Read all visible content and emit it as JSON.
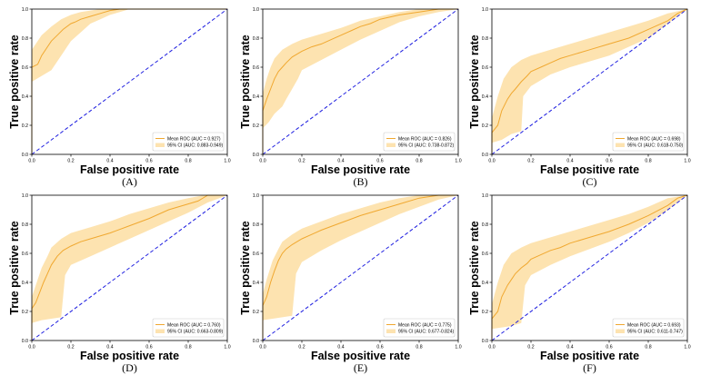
{
  "chart_data": [
    {
      "type": "line",
      "panel_label": "(A)",
      "xlabel": "False positive rate",
      "ylabel": "True positive rate",
      "xlim": [
        0.0,
        1.0
      ],
      "ylim": [
        0.0,
        1.0
      ],
      "xticks": [
        "0.0",
        "0.2",
        "0.4",
        "0.6",
        "0.8",
        "1.0"
      ],
      "yticks": [
        "0.0",
        "0.2",
        "0.4",
        "0.6",
        "0.8",
        "1.0"
      ],
      "legend_position": "lower-right",
      "legend": [
        "Mean ROC (AUC = 0.927)",
        "95% CI (AUC: 0.883-0.949)"
      ],
      "colors": {
        "mean": "#f0a830",
        "ci": "#fde3b0",
        "chance": "#1f1fe0"
      },
      "series": [
        {
          "name": "Mean ROC",
          "x": [
            0,
            0.0,
            0.03,
            0.05,
            0.08,
            0.1,
            0.13,
            0.16,
            0.2,
            0.22,
            0.25,
            0.3,
            0.35,
            0.4,
            0.45,
            0.5,
            1.0
          ],
          "y": [
            0,
            0.6,
            0.62,
            0.68,
            0.74,
            0.78,
            0.82,
            0.86,
            0.9,
            0.91,
            0.93,
            0.95,
            0.97,
            0.99,
            1.0,
            1.0,
            1.0
          ]
        },
        {
          "name": "95% CI upper",
          "x": [
            0,
            0.0,
            0.05,
            0.1,
            0.15,
            0.2,
            0.25,
            0.3,
            0.35,
            0.4,
            1.0
          ],
          "y": [
            0,
            0.72,
            0.82,
            0.88,
            0.93,
            0.96,
            0.98,
            0.99,
            1.0,
            1.0,
            1.0
          ]
        },
        {
          "name": "95% CI lower",
          "x": [
            0,
            0.0,
            0.05,
            0.1,
            0.15,
            0.2,
            0.25,
            0.3,
            0.35,
            0.4,
            0.45,
            0.5,
            1.0
          ],
          "y": [
            0,
            0.5,
            0.54,
            0.58,
            0.68,
            0.78,
            0.84,
            0.9,
            0.93,
            0.96,
            0.98,
            1.0,
            1.0
          ]
        },
        {
          "name": "Chance",
          "x": [
            0,
            1
          ],
          "y": [
            0,
            1
          ]
        }
      ]
    },
    {
      "type": "line",
      "panel_label": "(B)",
      "xlabel": "False positive rate",
      "ylabel": "True positive rate",
      "xlim": [
        0.0,
        1.0
      ],
      "ylim": [
        0.0,
        1.0
      ],
      "xticks": [
        "0.0",
        "0.2",
        "0.4",
        "0.6",
        "0.8",
        "1.0"
      ],
      "yticks": [
        "0.0",
        "0.2",
        "0.4",
        "0.6",
        "0.8",
        "1.0"
      ],
      "legend_position": "lower-right",
      "legend": [
        "Mean ROC (AUC = 0.826)",
        "95% CI (AUC: 0.738-0.872)"
      ],
      "colors": {
        "mean": "#f0a830",
        "ci": "#fde3b0",
        "chance": "#1f1fe0"
      },
      "series": [
        {
          "name": "Mean ROC",
          "x": [
            0,
            0.0,
            0.02,
            0.04,
            0.06,
            0.08,
            0.1,
            0.12,
            0.15,
            0.2,
            0.25,
            0.3,
            0.35,
            0.4,
            0.45,
            0.5,
            0.55,
            0.6,
            0.7,
            0.8,
            0.9,
            1.0
          ],
          "y": [
            0,
            0.3,
            0.38,
            0.45,
            0.52,
            0.57,
            0.6,
            0.63,
            0.67,
            0.71,
            0.74,
            0.76,
            0.79,
            0.82,
            0.85,
            0.88,
            0.9,
            0.93,
            0.96,
            0.98,
            1.0,
            1.0
          ]
        },
        {
          "name": "95% CI upper",
          "x": [
            0,
            0.0,
            0.02,
            0.04,
            0.06,
            0.1,
            0.15,
            0.2,
            0.3,
            0.4,
            0.5,
            0.6,
            0.7,
            0.8,
            1.0
          ],
          "y": [
            0,
            0.42,
            0.52,
            0.6,
            0.66,
            0.72,
            0.76,
            0.79,
            0.83,
            0.87,
            0.92,
            0.95,
            0.98,
            1.0,
            1.0
          ]
        },
        {
          "name": "95% CI lower",
          "x": [
            0,
            0.0,
            0.03,
            0.06,
            0.1,
            0.12,
            0.15,
            0.18,
            0.2,
            0.3,
            0.4,
            0.5,
            0.6,
            0.7,
            0.8,
            0.9,
            1.0
          ],
          "y": [
            0,
            0.18,
            0.22,
            0.28,
            0.33,
            0.38,
            0.45,
            0.52,
            0.58,
            0.65,
            0.72,
            0.79,
            0.85,
            0.91,
            0.95,
            0.98,
            1.0
          ]
        },
        {
          "name": "Chance",
          "x": [
            0,
            1
          ],
          "y": [
            0,
            1
          ]
        }
      ]
    },
    {
      "type": "line",
      "panel_label": "(C)",
      "xlabel": "False positive rate",
      "ylabel": "True positive rate",
      "xlim": [
        0.0,
        1.0
      ],
      "ylim": [
        0.0,
        1.0
      ],
      "xticks": [
        "0.0",
        "0.2",
        "0.4",
        "0.6",
        "0.8",
        "1.0"
      ],
      "yticks": [
        "0.0",
        "0.2",
        "0.4",
        "0.6",
        "0.8",
        "1.0"
      ],
      "legend_position": "lower-right",
      "legend": [
        "Mean ROC (AUC = 0.698)",
        "95% CI (AUC: 0.618-0.750)"
      ],
      "colors": {
        "mean": "#f0a830",
        "ci": "#fde3b0",
        "chance": "#1f1fe0"
      },
      "series": [
        {
          "name": "Mean ROC",
          "x": [
            0,
            0.0,
            0.03,
            0.05,
            0.08,
            0.1,
            0.12,
            0.15,
            0.18,
            0.2,
            0.25,
            0.3,
            0.35,
            0.4,
            0.5,
            0.6,
            0.7,
            0.8,
            0.9,
            0.95,
            1.0
          ],
          "y": [
            0,
            0.15,
            0.2,
            0.3,
            0.38,
            0.42,
            0.45,
            0.5,
            0.54,
            0.57,
            0.6,
            0.63,
            0.66,
            0.68,
            0.72,
            0.76,
            0.8,
            0.86,
            0.92,
            0.97,
            1.0
          ]
        },
        {
          "name": "95% CI upper",
          "x": [
            0,
            0.0,
            0.03,
            0.06,
            0.1,
            0.15,
            0.2,
            0.3,
            0.4,
            0.5,
            0.6,
            0.7,
            0.8,
            0.9,
            1.0
          ],
          "y": [
            0,
            0.25,
            0.4,
            0.52,
            0.6,
            0.65,
            0.68,
            0.72,
            0.76,
            0.8,
            0.84,
            0.88,
            0.92,
            0.97,
            1.0
          ]
        },
        {
          "name": "95% CI lower",
          "x": [
            0,
            0.0,
            0.05,
            0.1,
            0.15,
            0.16,
            0.2,
            0.3,
            0.4,
            0.5,
            0.6,
            0.7,
            0.8,
            0.9,
            1.0
          ],
          "y": [
            0,
            0.08,
            0.1,
            0.14,
            0.16,
            0.4,
            0.47,
            0.55,
            0.6,
            0.64,
            0.68,
            0.74,
            0.8,
            0.9,
            1.0
          ]
        },
        {
          "name": "Chance",
          "x": [
            0,
            1
          ],
          "y": [
            0,
            1
          ]
        }
      ]
    },
    {
      "type": "line",
      "panel_label": "(D)",
      "xlabel": "False positive rate",
      "ylabel": "True positive rate",
      "xlim": [
        0.0,
        1.0
      ],
      "ylim": [
        0.0,
        1.0
      ],
      "xticks": [
        "0.0",
        "0.2",
        "0.4",
        "0.6",
        "0.8",
        "1.0"
      ],
      "yticks": [
        "0.0",
        "0.2",
        "0.4",
        "0.6",
        "0.8",
        "1.0"
      ],
      "legend_position": "lower-right",
      "legend": [
        "Mean ROC (AUC = 0.760)",
        "95% CI (AUC: 0.663-0.809)"
      ],
      "colors": {
        "mean": "#f0a830",
        "ci": "#fde3b0",
        "chance": "#1f1fe0"
      },
      "series": [
        {
          "name": "Mean ROC",
          "x": [
            0,
            0.0,
            0.02,
            0.04,
            0.06,
            0.08,
            0.1,
            0.13,
            0.16,
            0.2,
            0.25,
            0.3,
            0.4,
            0.5,
            0.6,
            0.7,
            0.8,
            0.85,
            0.9,
            1.0
          ],
          "y": [
            0,
            0.22,
            0.26,
            0.33,
            0.4,
            0.46,
            0.52,
            0.58,
            0.62,
            0.65,
            0.68,
            0.7,
            0.74,
            0.79,
            0.84,
            0.9,
            0.94,
            0.96,
            1.0,
            1.0
          ]
        },
        {
          "name": "95% CI upper",
          "x": [
            0,
            0.0,
            0.02,
            0.05,
            0.08,
            0.1,
            0.15,
            0.2,
            0.3,
            0.4,
            0.5,
            0.6,
            0.7,
            0.8,
            0.88,
            1.0
          ],
          "y": [
            0,
            0.3,
            0.38,
            0.5,
            0.58,
            0.64,
            0.7,
            0.74,
            0.78,
            0.82,
            0.87,
            0.91,
            0.95,
            0.98,
            1.0,
            1.0
          ]
        },
        {
          "name": "95% CI lower",
          "x": [
            0,
            0.0,
            0.05,
            0.1,
            0.15,
            0.17,
            0.2,
            0.3,
            0.4,
            0.5,
            0.6,
            0.7,
            0.8,
            0.9,
            1.0
          ],
          "y": [
            0,
            0.12,
            0.14,
            0.15,
            0.16,
            0.45,
            0.52,
            0.58,
            0.64,
            0.7,
            0.76,
            0.82,
            0.88,
            0.95,
            1.0
          ]
        },
        {
          "name": "Chance",
          "x": [
            0,
            1
          ],
          "y": [
            0,
            1
          ]
        }
      ]
    },
    {
      "type": "line",
      "panel_label": "(E)",
      "xlabel": "False positive rate",
      "ylabel": "True positive rate",
      "xlim": [
        0.0,
        1.0
      ],
      "ylim": [
        0.0,
        1.0
      ],
      "xticks": [
        "0.0",
        "0.2",
        "0.4",
        "0.6",
        "0.8",
        "1.0"
      ],
      "yticks": [
        "0.0",
        "0.2",
        "0.4",
        "0.6",
        "0.8",
        "1.0"
      ],
      "legend_position": "lower-right",
      "legend": [
        "Mean ROC (AUC = 0.775)",
        "95% CI (AUC: 0.677-0.824)"
      ],
      "colors": {
        "mean": "#f0a830",
        "ci": "#fde3b0",
        "chance": "#1f1fe0"
      },
      "series": [
        {
          "name": "Mean ROC",
          "x": [
            0,
            0.0,
            0.02,
            0.04,
            0.06,
            0.08,
            0.1,
            0.12,
            0.15,
            0.2,
            0.25,
            0.3,
            0.4,
            0.5,
            0.6,
            0.7,
            0.8,
            0.9,
            1.0
          ],
          "y": [
            0,
            0.24,
            0.3,
            0.4,
            0.48,
            0.55,
            0.6,
            0.63,
            0.66,
            0.7,
            0.73,
            0.76,
            0.81,
            0.86,
            0.9,
            0.94,
            0.98,
            1.0,
            1.0
          ]
        },
        {
          "name": "95% CI upper",
          "x": [
            0,
            0.0,
            0.02,
            0.05,
            0.08,
            0.1,
            0.15,
            0.2,
            0.3,
            0.4,
            0.5,
            0.6,
            0.7,
            0.8,
            1.0
          ],
          "y": [
            0,
            0.32,
            0.42,
            0.55,
            0.63,
            0.68,
            0.73,
            0.77,
            0.82,
            0.87,
            0.91,
            0.95,
            0.98,
            1.0,
            1.0
          ]
        },
        {
          "name": "95% CI lower",
          "x": [
            0,
            0.0,
            0.05,
            0.1,
            0.15,
            0.17,
            0.2,
            0.3,
            0.4,
            0.5,
            0.6,
            0.7,
            0.8,
            0.9,
            1.0
          ],
          "y": [
            0,
            0.14,
            0.15,
            0.16,
            0.17,
            0.46,
            0.54,
            0.62,
            0.69,
            0.75,
            0.81,
            0.87,
            0.92,
            0.97,
            1.0
          ]
        },
        {
          "name": "Chance",
          "x": [
            0,
            1
          ],
          "y": [
            0,
            1
          ]
        }
      ]
    },
    {
      "type": "line",
      "panel_label": "(F)",
      "xlabel": "False positive rate",
      "ylabel": "True positive rate",
      "xlim": [
        0.0,
        1.0
      ],
      "ylim": [
        0.0,
        1.0
      ],
      "xticks": [
        "0.0",
        "0.2",
        "0.4",
        "0.6",
        "0.8",
        "1.0"
      ],
      "yticks": [
        "0.0",
        "0.2",
        "0.4",
        "0.6",
        "0.8",
        "1.0"
      ],
      "legend_position": "lower-right",
      "legend": [
        "Mean ROC (AUC = 0.693)",
        "95% CI (AUC: 0.611-0.747)"
      ],
      "colors": {
        "mean": "#f0a830",
        "ci": "#fde3b0",
        "chance": "#1f1fe0"
      },
      "series": [
        {
          "name": "Mean ROC",
          "x": [
            0,
            0.0,
            0.03,
            0.05,
            0.08,
            0.1,
            0.12,
            0.15,
            0.18,
            0.2,
            0.25,
            0.3,
            0.35,
            0.4,
            0.5,
            0.6,
            0.7,
            0.8,
            0.9,
            0.95,
            1.0
          ],
          "y": [
            0,
            0.15,
            0.2,
            0.3,
            0.38,
            0.42,
            0.46,
            0.5,
            0.53,
            0.56,
            0.59,
            0.62,
            0.64,
            0.67,
            0.71,
            0.75,
            0.8,
            0.86,
            0.93,
            0.98,
            1.0
          ]
        },
        {
          "name": "95% CI upper",
          "x": [
            0,
            0.0,
            0.03,
            0.06,
            0.1,
            0.15,
            0.2,
            0.3,
            0.4,
            0.5,
            0.6,
            0.7,
            0.8,
            0.9,
            1.0
          ],
          "y": [
            0,
            0.25,
            0.4,
            0.52,
            0.6,
            0.64,
            0.67,
            0.71,
            0.75,
            0.79,
            0.83,
            0.87,
            0.92,
            0.98,
            1.0
          ]
        },
        {
          "name": "95% CI lower",
          "x": [
            0,
            0.0,
            0.05,
            0.1,
            0.15,
            0.17,
            0.2,
            0.3,
            0.4,
            0.5,
            0.6,
            0.7,
            0.8,
            0.9,
            1.0
          ],
          "y": [
            0,
            0.08,
            0.09,
            0.1,
            0.12,
            0.38,
            0.45,
            0.52,
            0.58,
            0.63,
            0.68,
            0.74,
            0.81,
            0.9,
            1.0
          ]
        },
        {
          "name": "Chance",
          "x": [
            0,
            1
          ],
          "y": [
            0,
            1
          ]
        }
      ]
    }
  ]
}
